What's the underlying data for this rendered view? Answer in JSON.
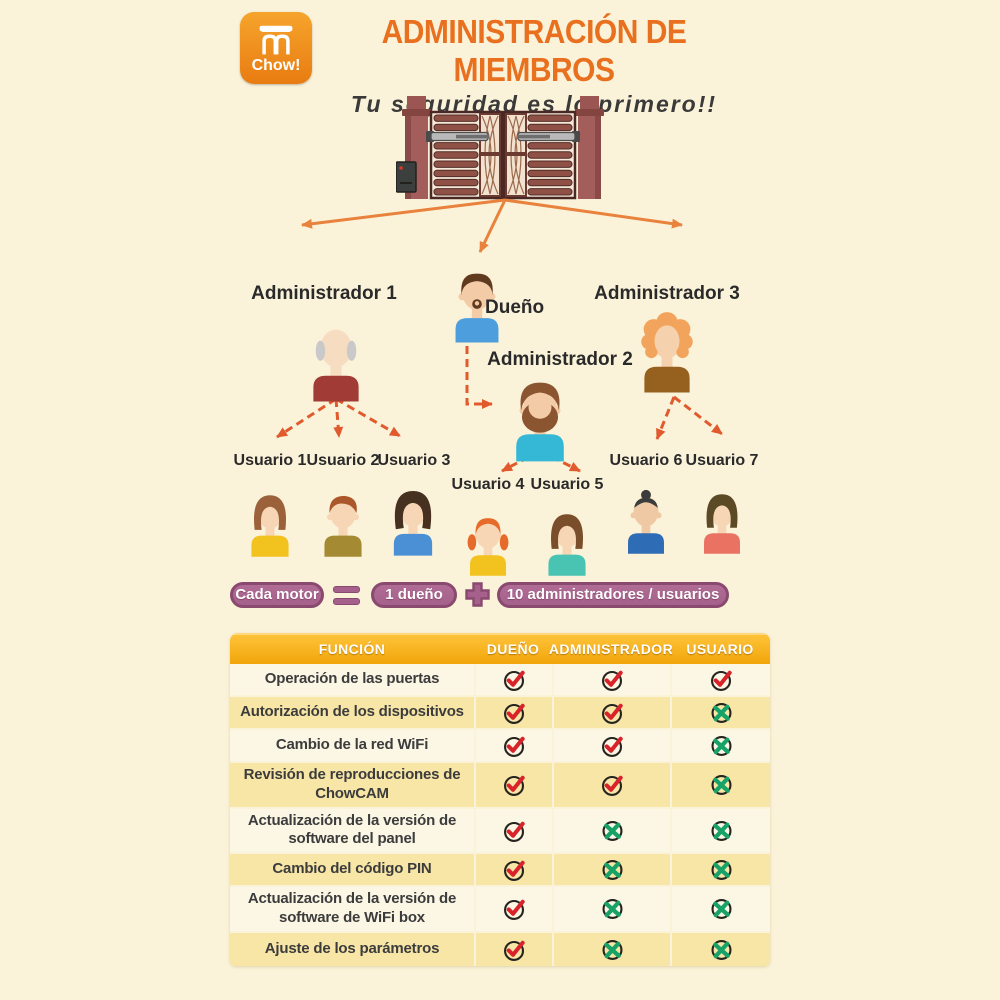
{
  "header": {
    "logo_text": "Chow!",
    "logo_icon": "gate-logo-icon",
    "title": "ADMINISTRACIÓN DE MIEMBROS",
    "subtitle": "Tu seguridad es lo primero!!"
  },
  "org_chart": {
    "root": "gate-illustration",
    "people": [
      {
        "id": "administrador-1",
        "label": "Administrador 1",
        "style": "elder",
        "hair": "#C9C9C9",
        "shirt": "#A13B35",
        "skin": "#F6DCC0"
      },
      {
        "id": "dueno",
        "label": "Dueño",
        "style": "goatee",
        "hair": "#5F3A1E",
        "shirt": "#4D9EDC",
        "skin": "#F3CBA7"
      },
      {
        "id": "administrador-3",
        "label": "Administrador 3",
        "style": "curly",
        "hair": "#F2A35C",
        "shirt": "#96601F",
        "skin": "#F6D1AE"
      },
      {
        "id": "administrador-2",
        "label": "Administrador 2",
        "style": "beard",
        "hair": "#8A5530",
        "shirt": "#35B7D6",
        "skin": "#F3CBA7"
      },
      {
        "id": "usuario-1",
        "label": "Usuario 1",
        "style": "bob",
        "hair": "#9A613B",
        "shirt": "#F2C21E",
        "skin": "#F6D6B5"
      },
      {
        "id": "usuario-2",
        "label": "Usuario 2",
        "style": "swoop",
        "hair": "#A9572B",
        "shirt": "#A38A33",
        "skin": "#F6D6B5"
      },
      {
        "id": "usuario-3",
        "label": "Usuario 3",
        "style": "bigbob",
        "hair": "#46301F",
        "shirt": "#4B8FD5",
        "skin": "#F6D6B5"
      },
      {
        "id": "usuario-4",
        "label": "Usuario 4",
        "style": "pigtails",
        "hair": "#E66A2A",
        "shirt": "#F2C21E",
        "skin": "#F6D6B5"
      },
      {
        "id": "usuario-5",
        "label": "Usuario 5",
        "style": "bob",
        "hair": "#7A4E2A",
        "shirt": "#49C3B2",
        "skin": "#F6D6B5"
      },
      {
        "id": "usuario-6",
        "label": "Usuario 6",
        "style": "bun",
        "hair": "#3C3C3C",
        "shirt": "#2E6CB5",
        "skin": "#EFC9A4"
      },
      {
        "id": "usuario-7",
        "label": "Usuario 7",
        "style": "bob",
        "hair": "#5C4A26",
        "shirt": "#E97263",
        "skin": "#F6D6B5"
      }
    ]
  },
  "formula": {
    "left": "Cada motor",
    "equals": "=",
    "operand1": "1 dueño",
    "plus": "+",
    "operand2": "10 administradores / usuarios"
  },
  "table": {
    "headers": [
      "FUNCIÓN",
      "DUEÑO",
      "ADMINISTRADOR",
      "USUARIO"
    ],
    "rows": [
      {
        "funcion": "Operación de las puertas",
        "dueno": "check",
        "administrador": "check",
        "usuario": "check"
      },
      {
        "funcion": "Autorización de los dispositivos",
        "dueno": "check",
        "administrador": "check",
        "usuario": "cross"
      },
      {
        "funcion": "Cambio de la red WiFi",
        "dueno": "check",
        "administrador": "check",
        "usuario": "cross"
      },
      {
        "funcion": "Revisión de reproducciones de ChowCAM",
        "dueno": "check",
        "administrador": "check",
        "usuario": "cross"
      },
      {
        "funcion": "Actualización de la versión de software del panel",
        "dueno": "check",
        "administrador": "cross",
        "usuario": "cross"
      },
      {
        "funcion": "Cambio del código PIN",
        "dueno": "check",
        "administrador": "cross",
        "usuario": "cross"
      },
      {
        "funcion": "Actualización de la versión de software de WiFi box",
        "dueno": "check",
        "administrador": "cross",
        "usuario": "cross"
      },
      {
        "funcion": "Ajuste de los parámetros",
        "dueno": "check",
        "administrador": "cross",
        "usuario": "cross"
      }
    ],
    "check_color": "#D8232A",
    "cross_color": "#17A268",
    "circle_color": "#26241E"
  },
  "colors": {
    "background": "#FBF3D9",
    "accent_orange": "#E8701F",
    "arrow_solid": "#E8823C",
    "arrow_dashed": "#E05A2D",
    "pill_fill": "#A5618B",
    "pill_border": "#8A4A6F",
    "table_header_top": "#FFC53C",
    "table_header_bottom": "#F1A50A",
    "row_stripe_light": "#FCF7E5",
    "row_stripe_yellow": "#F8E6A7"
  }
}
